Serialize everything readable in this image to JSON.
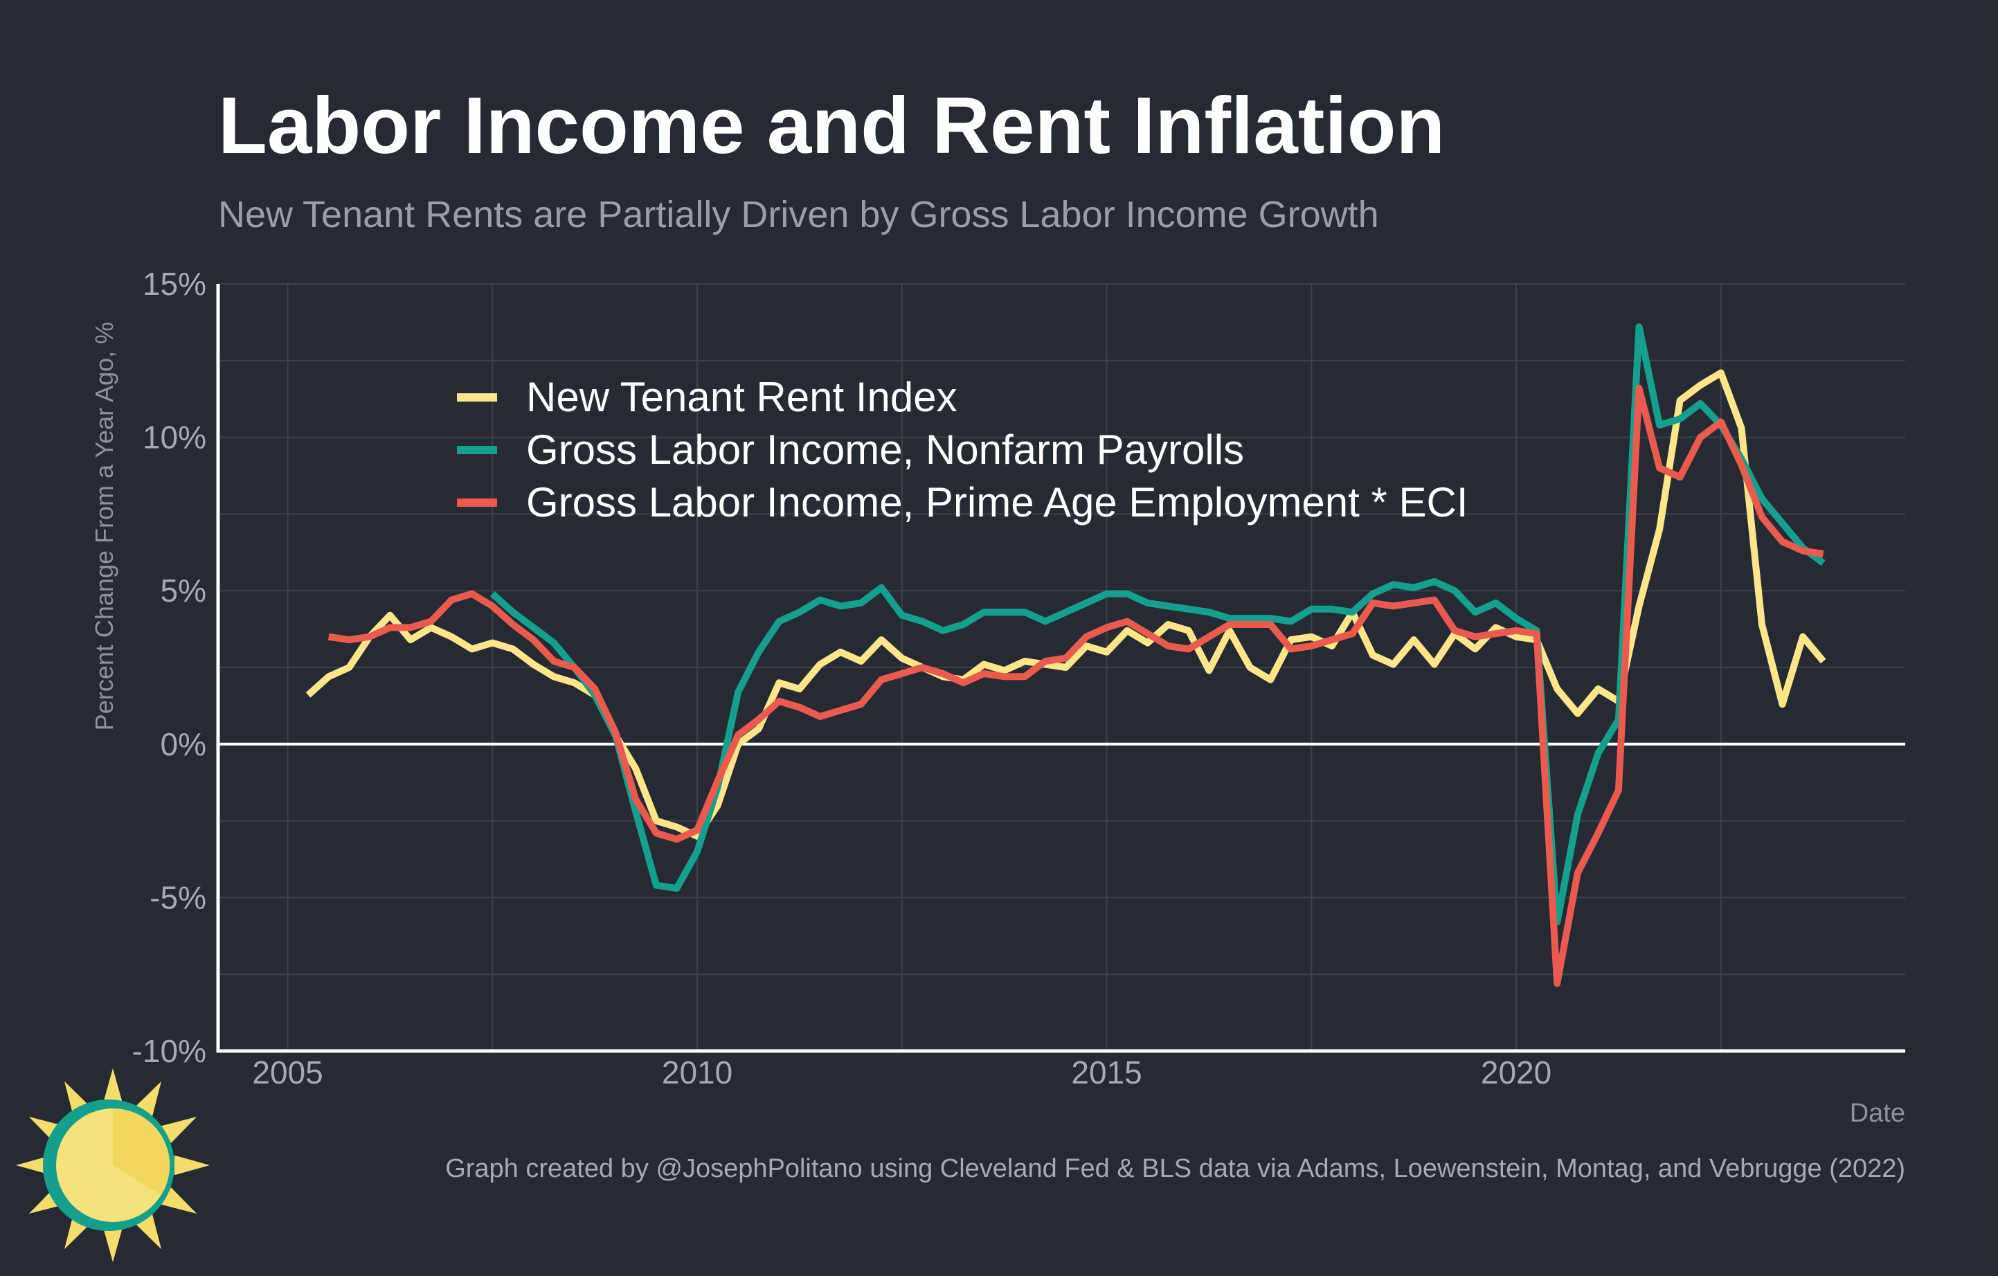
{
  "colors": {
    "background": "#252a33",
    "grid": "#3c414a",
    "axis": "#ffffff",
    "zero_line": "#ffffff",
    "logo_ring": "#14a08c",
    "logo_sun": "#f6e27a",
    "logo_sun_shade": "#f2d75c",
    "logo_ray": "#f4dd6a"
  },
  "chart_data": {
    "type": "line",
    "title": "Labor Income and Rent Inflation",
    "subtitle": "New Tenant Rents are Partially Driven by Gross Labor Income Growth",
    "xlabel": "Date",
    "ylabel": "Percent Change From a Year Ago, %",
    "xlim": [
      2004.15,
      2024.75
    ],
    "ylim": [
      -10,
      15
    ],
    "x_ticks": [
      2005,
      2010,
      2015,
      2020
    ],
    "y_ticks": [
      -10,
      -5,
      0,
      5,
      10,
      15
    ],
    "y_tick_labels": [
      "-10%",
      "-5%",
      "0%",
      "5%",
      "10%",
      "15%"
    ],
    "grid": true,
    "legend_position": "top-left",
    "caption": "Graph created by @JosephPolitano using Cleveland Fed & BLS data via Adams, Loewenstein, Montag, and Vebrugge (2022)",
    "series": [
      {
        "name": "New Tenant Rent Index",
        "color": "#fde68a",
        "x": [
          2005.25,
          2005.5,
          2005.75,
          2006.0,
          2006.25,
          2006.5,
          2006.75,
          2007.0,
          2007.25,
          2007.5,
          2007.75,
          2008.0,
          2008.25,
          2008.5,
          2008.75,
          2009.0,
          2009.25,
          2009.5,
          2009.75,
          2010.0,
          2010.25,
          2010.5,
          2010.75,
          2011.0,
          2011.25,
          2011.5,
          2011.75,
          2012.0,
          2012.25,
          2012.5,
          2012.75,
          2013.0,
          2013.25,
          2013.5,
          2013.75,
          2014.0,
          2014.25,
          2014.5,
          2014.75,
          2015.0,
          2015.25,
          2015.5,
          2015.75,
          2016.0,
          2016.25,
          2016.5,
          2016.75,
          2017.0,
          2017.25,
          2017.5,
          2017.75,
          2018.0,
          2018.25,
          2018.5,
          2018.75,
          2019.0,
          2019.25,
          2019.5,
          2019.75,
          2020.0,
          2020.25,
          2020.5,
          2020.75,
          2021.0,
          2021.25,
          2021.5,
          2021.75,
          2022.0,
          2022.25,
          2022.5,
          2022.75,
          2023.0,
          2023.25,
          2023.5,
          2023.75
        ],
        "values": [
          1.6,
          2.2,
          2.5,
          3.5,
          4.2,
          3.4,
          3.8,
          3.5,
          3.1,
          3.3,
          3.1,
          2.6,
          2.2,
          2.0,
          1.6,
          0.3,
          -0.8,
          -2.5,
          -2.7,
          -3.0,
          -2.0,
          0.0,
          0.5,
          2.0,
          1.8,
          2.6,
          3.0,
          2.7,
          3.4,
          2.8,
          2.5,
          2.2,
          2.1,
          2.6,
          2.4,
          2.7,
          2.6,
          2.5,
          3.2,
          3.0,
          3.7,
          3.3,
          3.9,
          3.7,
          2.4,
          3.7,
          2.5,
          2.1,
          3.4,
          3.5,
          3.2,
          4.3,
          2.9,
          2.6,
          3.4,
          2.6,
          3.6,
          3.1,
          3.8,
          3.5,
          3.4,
          1.8,
          1.0,
          1.8,
          1.4,
          4.5,
          7.0,
          11.2,
          11.7,
          12.1,
          10.3,
          3.9,
          1.3,
          3.5,
          2.7
        ]
      },
      {
        "name": "Gross Labor Income, Nonfarm Payrolls",
        "color": "#14a08c",
        "x": [
          2007.5,
          2007.75,
          2008.0,
          2008.25,
          2008.5,
          2008.75,
          2009.0,
          2009.25,
          2009.5,
          2009.75,
          2010.0,
          2010.25,
          2010.5,
          2010.75,
          2011.0,
          2011.25,
          2011.5,
          2011.75,
          2012.0,
          2012.25,
          2012.5,
          2012.75,
          2013.0,
          2013.25,
          2013.5,
          2013.75,
          2014.0,
          2014.25,
          2014.5,
          2014.75,
          2015.0,
          2015.25,
          2015.5,
          2015.75,
          2016.0,
          2016.25,
          2016.5,
          2016.75,
          2017.0,
          2017.25,
          2017.5,
          2017.75,
          2018.0,
          2018.25,
          2018.5,
          2018.75,
          2019.0,
          2019.25,
          2019.5,
          2019.75,
          2020.0,
          2020.25,
          2020.5,
          2020.75,
          2021.0,
          2021.25,
          2021.5,
          2021.75,
          2022.0,
          2022.25,
          2022.5,
          2022.75,
          2023.0,
          2023.25,
          2023.5,
          2023.75
        ],
        "values": [
          4.9,
          4.3,
          3.8,
          3.3,
          2.5,
          1.6,
          0.3,
          -2.2,
          -4.6,
          -4.7,
          -3.5,
          -1.4,
          1.7,
          3.0,
          4.0,
          4.3,
          4.7,
          4.5,
          4.6,
          5.1,
          4.2,
          4.0,
          3.7,
          3.9,
          4.3,
          4.3,
          4.3,
          4.0,
          4.3,
          4.6,
          4.9,
          4.9,
          4.6,
          4.5,
          4.4,
          4.3,
          4.1,
          4.1,
          4.1,
          4.0,
          4.4,
          4.4,
          4.3,
          4.9,
          5.2,
          5.1,
          5.3,
          5.0,
          4.3,
          4.6,
          4.1,
          3.7,
          -5.8,
          -2.3,
          -0.3,
          0.8,
          13.6,
          10.4,
          10.6,
          11.1,
          10.4,
          9.3,
          8.0,
          7.2,
          6.4,
          5.9
        ]
      },
      {
        "name": "Gross Labor Income, Prime Age Employment * ECI",
        "color": "#eb5a4f",
        "x": [
          2005.5,
          2005.75,
          2006.0,
          2006.25,
          2006.5,
          2006.75,
          2007.0,
          2007.25,
          2007.5,
          2007.75,
          2008.0,
          2008.25,
          2008.5,
          2008.75,
          2009.0,
          2009.25,
          2009.5,
          2009.75,
          2010.0,
          2010.25,
          2010.5,
          2010.75,
          2011.0,
          2011.25,
          2011.5,
          2011.75,
          2012.0,
          2012.25,
          2012.5,
          2012.75,
          2013.0,
          2013.25,
          2013.5,
          2013.75,
          2014.0,
          2014.25,
          2014.5,
          2014.75,
          2015.0,
          2015.25,
          2015.5,
          2015.75,
          2016.0,
          2016.25,
          2016.5,
          2016.75,
          2017.0,
          2017.25,
          2017.5,
          2017.75,
          2018.0,
          2018.25,
          2018.5,
          2018.75,
          2019.0,
          2019.25,
          2019.5,
          2019.75,
          2020.0,
          2020.25,
          2020.5,
          2020.75,
          2021.0,
          2021.25,
          2021.5,
          2021.75,
          2022.0,
          2022.25,
          2022.5,
          2022.75,
          2023.0,
          2023.25,
          2023.5,
          2023.75
        ],
        "values": [
          3.5,
          3.4,
          3.5,
          3.8,
          3.8,
          4.0,
          4.7,
          4.9,
          4.5,
          3.9,
          3.4,
          2.7,
          2.5,
          1.8,
          0.4,
          -1.8,
          -2.9,
          -3.1,
          -2.8,
          -1.2,
          0.3,
          0.8,
          1.4,
          1.2,
          0.9,
          1.1,
          1.3,
          2.1,
          2.3,
          2.5,
          2.3,
          2.0,
          2.3,
          2.2,
          2.2,
          2.7,
          2.8,
          3.5,
          3.8,
          4.0,
          3.6,
          3.2,
          3.1,
          3.5,
          3.9,
          3.9,
          3.9,
          3.1,
          3.2,
          3.4,
          3.6,
          4.6,
          4.5,
          4.6,
          4.7,
          3.7,
          3.5,
          3.6,
          3.7,
          3.6,
          -7.8,
          -4.2,
          -2.9,
          -1.5,
          11.6,
          9.0,
          8.7,
          10.0,
          10.5,
          9.1,
          7.4,
          6.6,
          6.3,
          6.2
        ]
      }
    ]
  }
}
